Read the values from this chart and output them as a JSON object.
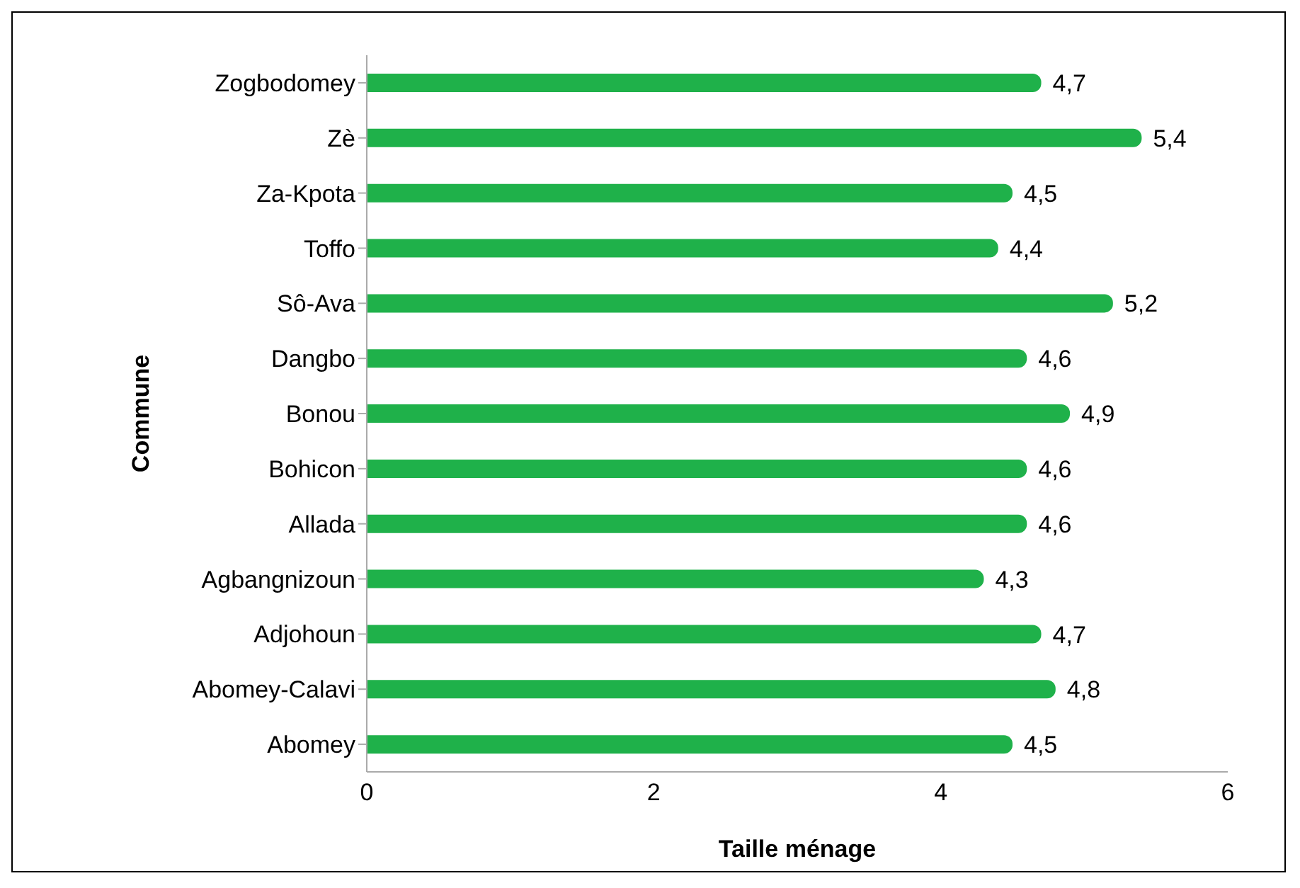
{
  "chart_data": {
    "type": "bar",
    "orientation": "horizontal",
    "xlabel": "Taille ménage",
    "ylabel": "Commune",
    "categories": [
      "Zogbodomey",
      "Zè",
      "Za-Kpota",
      "Toffo",
      "Sô-Ava",
      "Dangbo",
      "Bonou",
      "Bohicon",
      "Allada",
      "Agbangnizoun",
      "Adjohoun",
      "Abomey-Calavi",
      "Abomey"
    ],
    "values": [
      4.7,
      5.4,
      4.5,
      4.4,
      5.2,
      4.6,
      4.9,
      4.6,
      4.6,
      4.3,
      4.7,
      4.8,
      4.5
    ],
    "value_labels": [
      "4,7",
      "5,4",
      "4,5",
      "4,4",
      "5,2",
      "4,6",
      "4,9",
      "4,6",
      "4,6",
      "4,3",
      "4,7",
      "4,8",
      "4,5"
    ],
    "color": "#1fb14a",
    "xlim": [
      0,
      6
    ],
    "xticks": [
      0,
      2,
      4,
      6
    ],
    "grid": false
  }
}
